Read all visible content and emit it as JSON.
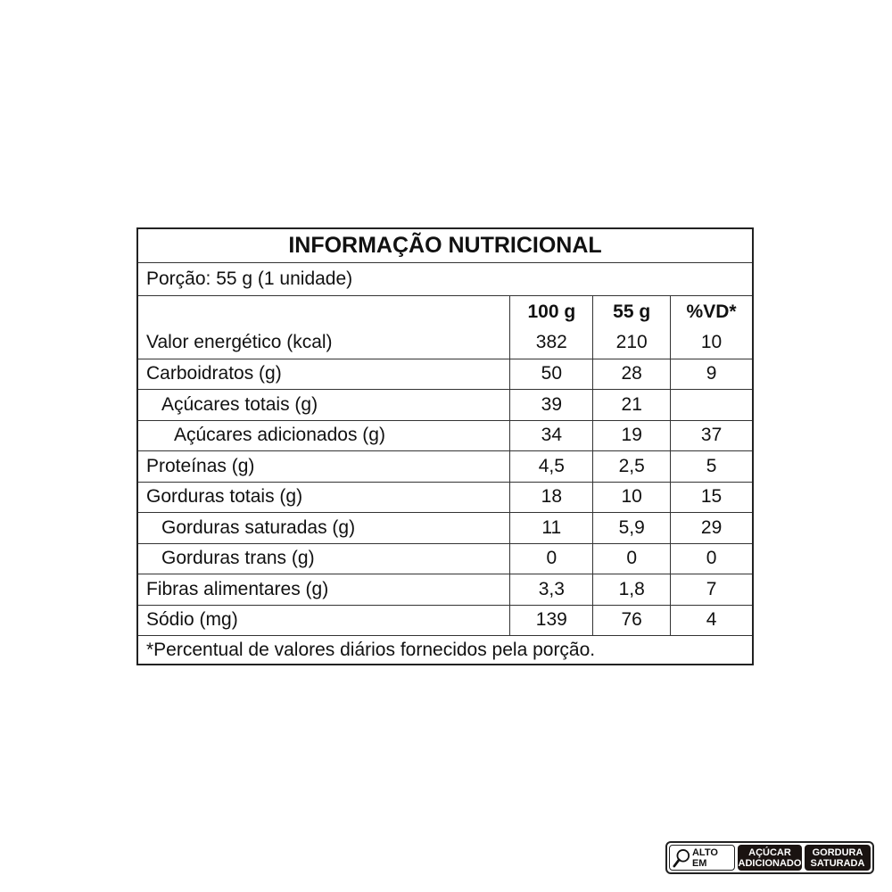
{
  "table": {
    "title": "INFORMAÇÃO NUTRICIONAL",
    "portion": "Porção: 55 g (1 unidade)",
    "headers": [
      "",
      "100 g",
      "55 g",
      "%VD*"
    ],
    "rows": [
      {
        "label": "Valor energético (kcal)",
        "indent": 0,
        "v100": "382",
        "v55": "210",
        "vd": "10"
      },
      {
        "label": "Carboidratos (g)",
        "indent": 0,
        "v100": "50",
        "v55": "28",
        "vd": "9"
      },
      {
        "label": "Açúcares totais (g)",
        "indent": 1,
        "v100": "39",
        "v55": "21",
        "vd": ""
      },
      {
        "label": "Açúcares adicionados (g)",
        "indent": 2,
        "v100": "34",
        "v55": "19",
        "vd": "37"
      },
      {
        "label": "Proteínas (g)",
        "indent": 0,
        "v100": "4,5",
        "v55": "2,5",
        "vd": "5"
      },
      {
        "label": "Gorduras totais (g)",
        "indent": 0,
        "v100": "18",
        "v55": "10",
        "vd": "15"
      },
      {
        "label": "Gorduras saturadas (g)",
        "indent": 1,
        "v100": "11",
        "v55": "5,9",
        "vd": "29"
      },
      {
        "label": "Gorduras trans (g)",
        "indent": 1,
        "v100": "0",
        "v55": "0",
        "vd": "0"
      },
      {
        "label": "Fibras alimentares (g)",
        "indent": 0,
        "v100": "3,3",
        "v55": "1,8",
        "vd": "7"
      },
      {
        "label": "Sódio (mg)",
        "indent": 0,
        "v100": "139",
        "v55": "76",
        "vd": "4"
      }
    ],
    "footnote": "*Percentual de valores diários fornecidos pela porção."
  },
  "badge": {
    "icon": "magnifier-icon",
    "prefix": "ALTO EM",
    "items": [
      [
        "AÇÚCAR",
        "ADICIONADO"
      ],
      [
        "GORDURA",
        "SATURADA"
      ]
    ]
  }
}
